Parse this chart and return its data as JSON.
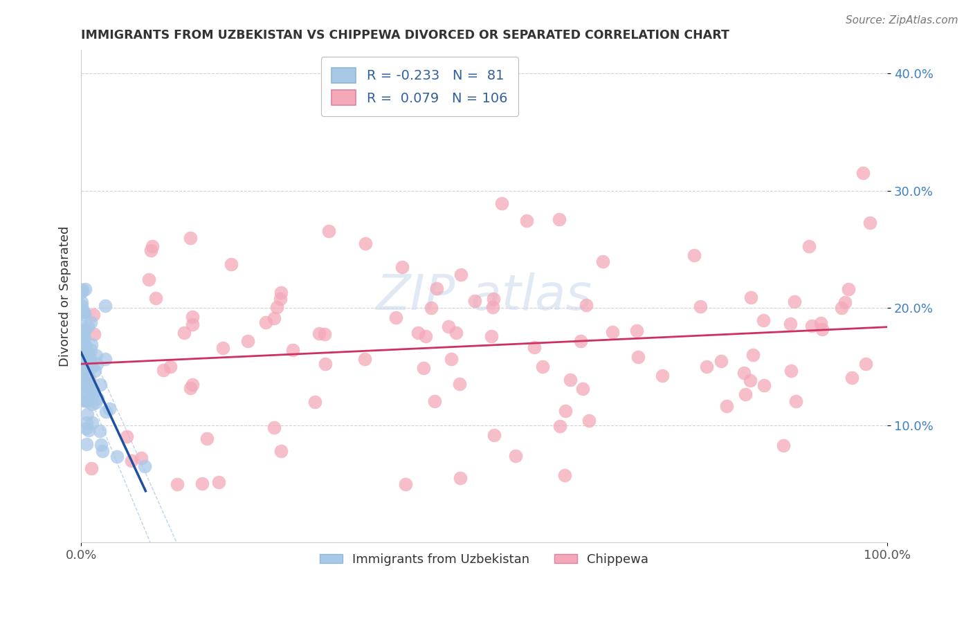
{
  "title": "IMMIGRANTS FROM UZBEKISTAN VS CHIPPEWA DIVORCED OR SEPARATED CORRELATION CHART",
  "source_text": "Source: ZipAtlas.com",
  "ylabel": "Divorced or Separated",
  "xlabel_blue": "Immigrants from Uzbekistan",
  "xlabel_pink": "Chippewa",
  "legend_blue_R": -0.233,
  "legend_blue_N": 81,
  "legend_pink_R": 0.079,
  "legend_pink_N": 106,
  "blue_color": "#a8c8e8",
  "pink_color": "#f4a8b8",
  "trend_blue_color": "#2050a0",
  "trend_pink_color": "#d03060",
  "ci_dash_color": "#b0c8e8",
  "watermark_color": "#c8d8ec",
  "xmin": 0.0,
  "xmax": 1.0,
  "ymin": 0.0,
  "ymax": 0.42,
  "yticks": [
    0.1,
    0.2,
    0.3,
    0.4
  ],
  "ytick_labels": [
    "10.0%",
    "20.0%",
    "30.0%",
    "40.0%"
  ],
  "xticks": [
    0.0,
    1.0
  ],
  "xtick_labels": [
    "0.0%",
    "100.0%"
  ],
  "grid_color": "#cccccc",
  "bg_color": "#ffffff",
  "title_color": "#333333"
}
